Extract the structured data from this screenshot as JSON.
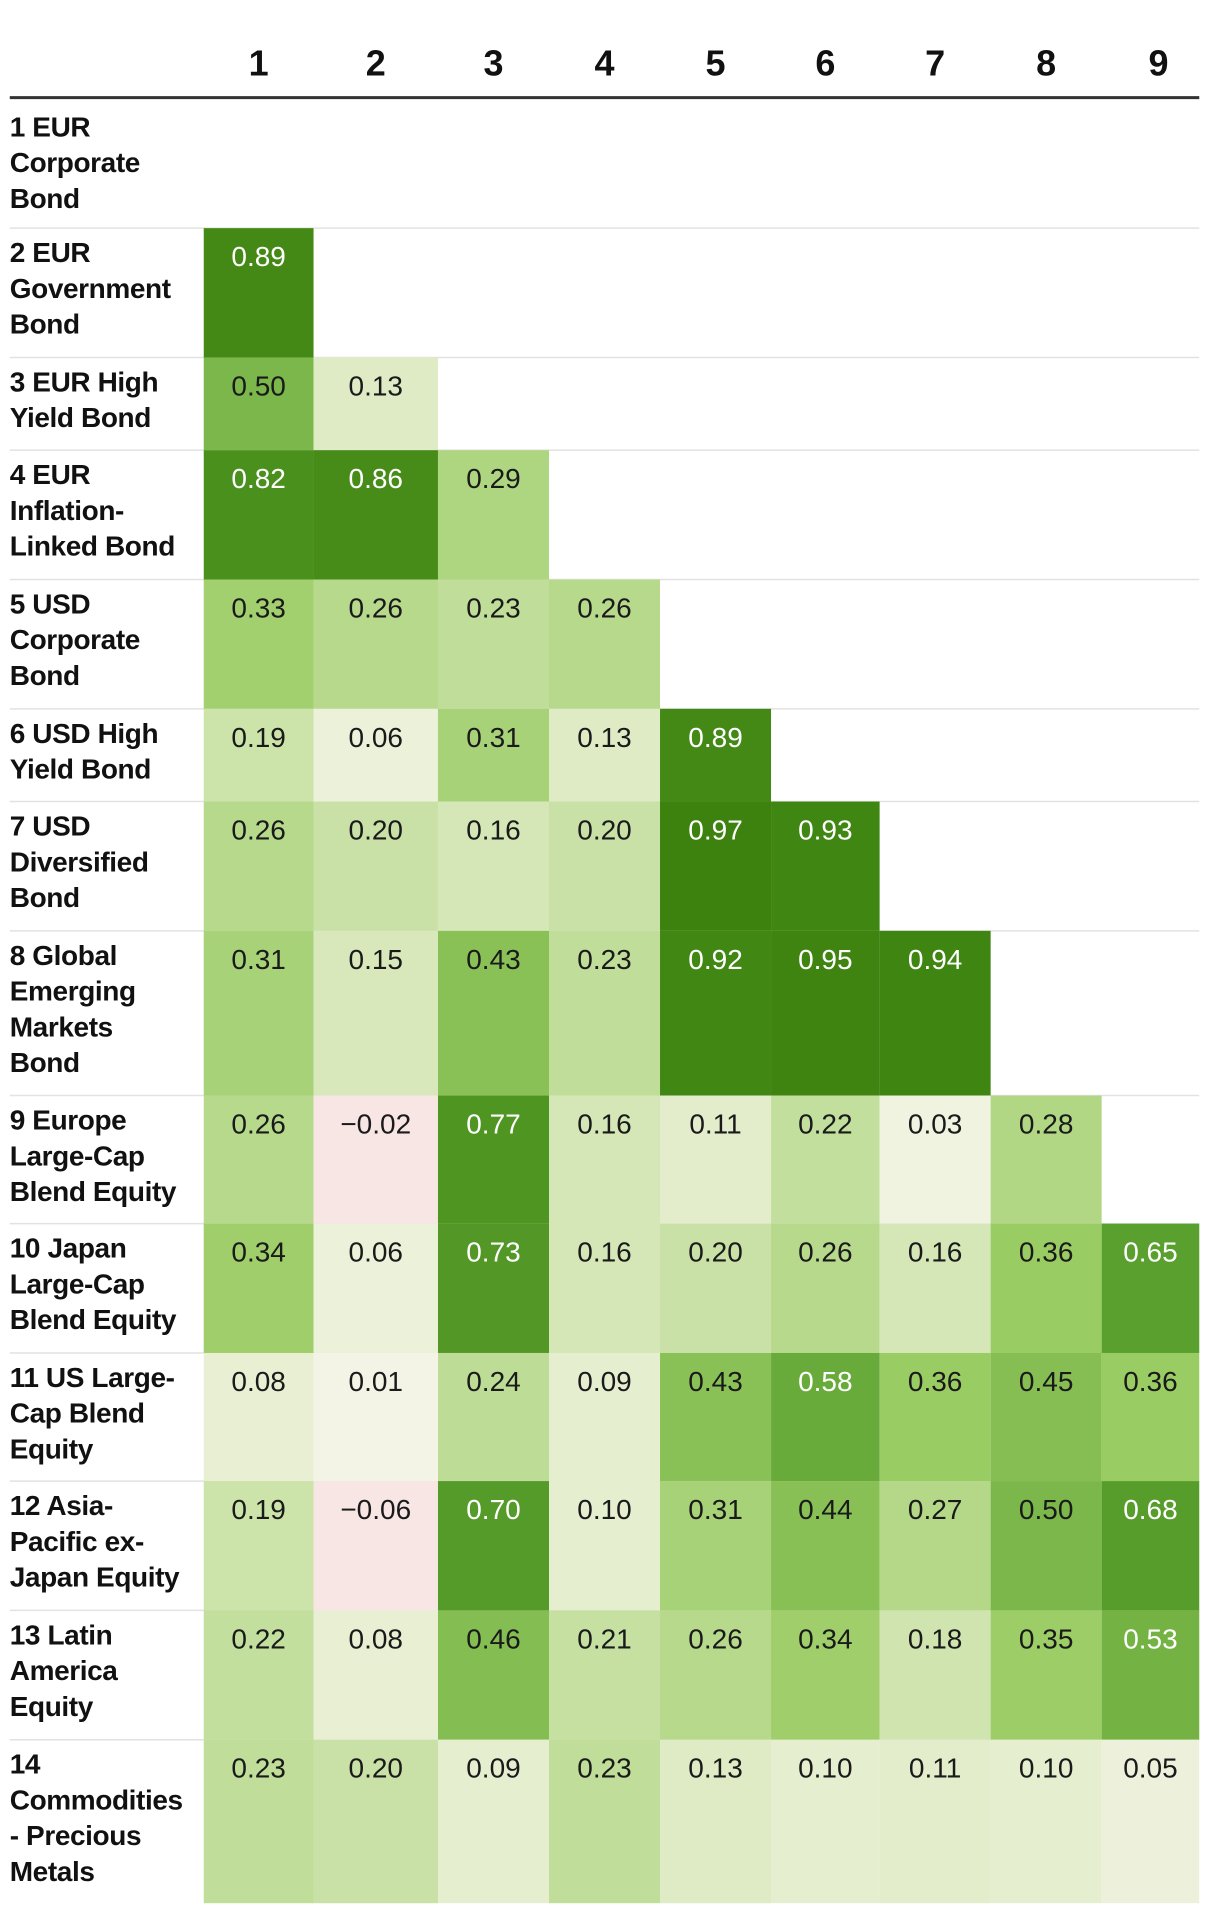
{
  "chart_data": {
    "type": "heatmap",
    "title": "",
    "columns": [
      "1",
      "2",
      "3",
      "4",
      "5",
      "6",
      "7",
      "8",
      "9"
    ],
    "rows": [
      {
        "lines": [
          "1 EUR",
          "Corporate",
          "Bond"
        ],
        "values": []
      },
      {
        "lines": [
          "2 EUR",
          "Government",
          "Bond"
        ],
        "values": [
          "0.89"
        ]
      },
      {
        "lines": [
          "3 EUR High",
          "Yield Bond"
        ],
        "values": [
          "0.50",
          "0.13"
        ]
      },
      {
        "lines": [
          "4 EUR",
          "Inflation-",
          "Linked Bond"
        ],
        "values": [
          "0.82",
          "0.86",
          "0.29"
        ]
      },
      {
        "lines": [
          "5 USD",
          "Corporate",
          "Bond"
        ],
        "values": [
          "0.33",
          "0.26",
          "0.23",
          "0.26"
        ]
      },
      {
        "lines": [
          "6 USD High",
          "Yield Bond"
        ],
        "values": [
          "0.19",
          "0.06",
          "0.31",
          "0.13",
          "0.89"
        ]
      },
      {
        "lines": [
          "7 USD",
          "Diversified",
          "Bond"
        ],
        "values": [
          "0.26",
          "0.20",
          "0.16",
          "0.20",
          "0.97",
          "0.93"
        ]
      },
      {
        "lines": [
          "8 Global",
          "Emerging",
          "Markets",
          "Bond"
        ],
        "values": [
          "0.31",
          "0.15",
          "0.43",
          "0.23",
          "0.92",
          "0.95",
          "0.94"
        ]
      },
      {
        "lines": [
          "9 Europe",
          "Large-Cap",
          "Blend Equity"
        ],
        "values": [
          "0.26",
          "−0.02",
          "0.77",
          "0.16",
          "0.11",
          "0.22",
          "0.03",
          "0.28"
        ]
      },
      {
        "lines": [
          "10 Japan",
          "Large-Cap",
          "Blend Equity"
        ],
        "values": [
          "0.34",
          "0.06",
          "0.73",
          "0.16",
          "0.20",
          "0.26",
          "0.16",
          "0.36",
          "0.65"
        ]
      },
      {
        "lines": [
          "11 US Large-",
          "Cap Blend",
          "Equity"
        ],
        "values": [
          "0.08",
          "0.01",
          "0.24",
          "0.09",
          "0.43",
          "0.58",
          "0.36",
          "0.45",
          "0.36"
        ]
      },
      {
        "lines": [
          "12 Asia-",
          "Pacific ex-",
          "Japan Equity"
        ],
        "values": [
          "0.19",
          "−0.06",
          "0.70",
          "0.10",
          "0.31",
          "0.44",
          "0.27",
          "0.50",
          "0.68"
        ]
      },
      {
        "lines": [
          "13 Latin",
          "America",
          "Equity"
        ],
        "values": [
          "0.22",
          "0.08",
          "0.46",
          "0.21",
          "0.26",
          "0.34",
          "0.18",
          "0.35",
          "0.53"
        ]
      },
      {
        "lines": [
          "14",
          "Commodities",
          "- Precious",
          "Metals"
        ],
        "values": [
          "0.23",
          "0.20",
          "0.09",
          "0.23",
          "0.13",
          "0.10",
          "0.11",
          "0.10",
          "0.05"
        ]
      }
    ],
    "colors": {
      "negative": "#f7e6e4",
      "near_zero": "#f6f5e9",
      "low": "#e1ecc8",
      "mid": "#9ccd66",
      "high": "#5aa02e",
      "very_high": "#3a7f0b",
      "text_dark": "#1a1a1a",
      "text_light": "#ffffff",
      "header_rule": "#333333",
      "row_rule": "#e2e2e2"
    }
  }
}
